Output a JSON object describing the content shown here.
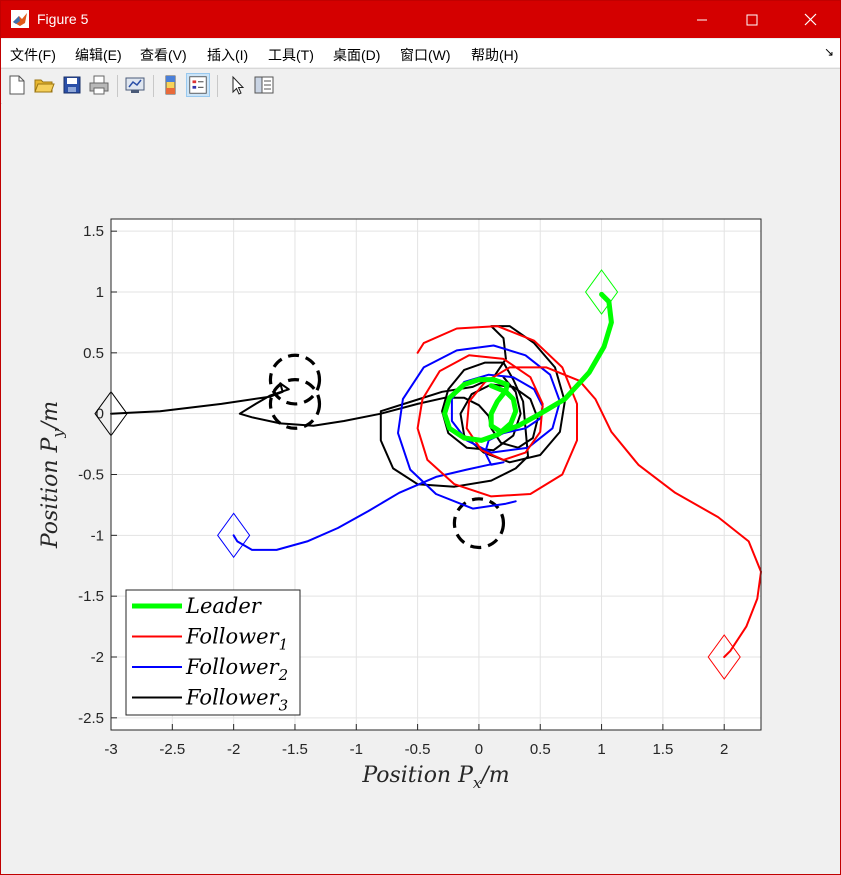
{
  "window": {
    "title": "Figure 5"
  },
  "menu": [
    {
      "label": "文件(F)"
    },
    {
      "label": "编辑(E)"
    },
    {
      "label": "查看(V)"
    },
    {
      "label": "插入(I)"
    },
    {
      "label": "工具(T)"
    },
    {
      "label": "桌面(D)"
    },
    {
      "label": "窗口(W)"
    },
    {
      "label": "帮助(H)"
    }
  ],
  "toolbar": [
    {
      "icon": "new-figure-icon"
    },
    {
      "icon": "open-file-icon"
    },
    {
      "icon": "save-icon"
    },
    {
      "icon": "print-icon"
    },
    {
      "icon": "link-plot-icon"
    },
    {
      "icon": "colorbar-icon"
    },
    {
      "icon": "legend-icon",
      "active": true
    },
    {
      "icon": "pointer-icon"
    },
    {
      "icon": "property-inspector-icon"
    }
  ],
  "chart_data": {
    "type": "line",
    "xlabel": "Position P_x/m",
    "ylabel": "Position P_y/m",
    "xlim": [
      -3,
      2.3
    ],
    "ylim": [
      -2.6,
      1.6
    ],
    "xticks": [
      -3,
      -2.5,
      -2,
      -1.5,
      -1,
      -0.5,
      0,
      0.5,
      1,
      1.5,
      2
    ],
    "yticks": [
      1.5,
      1,
      0.5,
      0,
      -0.5,
      -1,
      -1.5,
      -2,
      -2.5
    ],
    "xtick_labels": [
      "-3",
      "-2.5",
      "-2",
      "-1.5",
      "-1",
      "-0.5",
      "0",
      "0.5",
      "1",
      "1.5",
      "2"
    ],
    "ytick_labels": [
      "1.5",
      "1",
      "0.5",
      "0",
      "-0.5",
      "-1",
      "-1.5",
      "-2",
      "-2.5"
    ],
    "grid": true,
    "legend_position": "bottom-left",
    "series": [
      {
        "name": "Leader",
        "color": "#00ff00",
        "width": 5,
        "marker": "diamond",
        "start": [
          1,
          1
        ],
        "points": [
          [
            1,
            0.98
          ],
          [
            1.06,
            0.92
          ],
          [
            1.08,
            0.75
          ],
          [
            1.02,
            0.55
          ],
          [
            0.9,
            0.34
          ],
          [
            0.7,
            0.12
          ],
          [
            0.5,
            0
          ],
          [
            0.32,
            -0.1
          ],
          [
            0.18,
            -0.15
          ],
          [
            0.1,
            -0.1
          ],
          [
            0.1,
            0
          ],
          [
            0.15,
            0.1
          ],
          [
            0.22,
            0.19
          ],
          [
            0.23,
            0.24
          ],
          [
            0.12,
            0.28
          ],
          [
            0.0,
            0.28
          ],
          [
            -0.12,
            0.24
          ],
          [
            -0.24,
            0.13
          ],
          [
            -0.28,
            0
          ],
          [
            -0.24,
            -0.12
          ],
          [
            -0.12,
            -0.2
          ],
          [
            0.02,
            -0.22
          ],
          [
            0.16,
            -0.17
          ],
          [
            0.26,
            -0.08
          ],
          [
            0.3,
            0.02
          ],
          [
            0.28,
            0.12
          ],
          [
            0.22,
            0.18
          ],
          [
            0.1,
            0.23
          ]
        ]
      },
      {
        "name": "Follower_1",
        "color": "#ff0000",
        "width": 2,
        "marker": "diamond",
        "start": [
          2,
          -2
        ],
        "points": [
          [
            2,
            -2
          ],
          [
            2.05,
            -1.95
          ],
          [
            2.18,
            -1.75
          ],
          [
            2.27,
            -1.52
          ],
          [
            2.3,
            -1.3
          ],
          [
            2.2,
            -1.05
          ],
          [
            1.95,
            -0.85
          ],
          [
            1.6,
            -0.65
          ],
          [
            1.3,
            -0.42
          ],
          [
            1.08,
            -0.15
          ],
          [
            0.95,
            0.12
          ],
          [
            0.82,
            0.27
          ],
          [
            0.55,
            0.38
          ],
          [
            0.25,
            0.38
          ],
          [
            0.05,
            0.26
          ],
          [
            -0.08,
            0.1
          ],
          [
            -0.1,
            -0.12
          ],
          [
            0.02,
            -0.3
          ],
          [
            0.2,
            -0.38
          ],
          [
            0.38,
            -0.32
          ],
          [
            0.5,
            -0.15
          ],
          [
            0.52,
            0.08
          ],
          [
            0.42,
            0.3
          ],
          [
            0.2,
            0.45
          ],
          [
            -0.08,
            0.48
          ],
          [
            -0.32,
            0.35
          ],
          [
            -0.46,
            0.12
          ],
          [
            -0.5,
            -0.12
          ],
          [
            -0.42,
            -0.38
          ],
          [
            -0.2,
            -0.58
          ],
          [
            0.1,
            -0.68
          ],
          [
            0.42,
            -0.66
          ],
          [
            0.68,
            -0.5
          ],
          [
            0.8,
            -0.22
          ],
          [
            0.8,
            0.08
          ],
          [
            0.68,
            0.38
          ],
          [
            0.45,
            0.6
          ],
          [
            0.15,
            0.72
          ],
          [
            -0.18,
            0.7
          ],
          [
            -0.45,
            0.58
          ],
          [
            -0.5,
            0.5
          ]
        ]
      },
      {
        "name": "Follower_2",
        "color": "#0000ff",
        "width": 2,
        "marker": "diamond",
        "start": [
          -2,
          -1
        ],
        "points": [
          [
            -2,
            -1
          ],
          [
            -1.97,
            -1.05
          ],
          [
            -1.85,
            -1.12
          ],
          [
            -1.65,
            -1.12
          ],
          [
            -1.4,
            -1.05
          ],
          [
            -1.15,
            -0.94
          ],
          [
            -0.9,
            -0.8
          ],
          [
            -0.65,
            -0.65
          ],
          [
            -0.35,
            -0.52
          ],
          [
            -0.1,
            -0.46
          ],
          [
            0.08,
            -0.42
          ],
          [
            0.2,
            -0.4
          ],
          [
            0.1,
            -0.42
          ],
          [
            0.05,
            -0.32
          ],
          [
            0.08,
            -0.22
          ],
          [
            0.2,
            -0.16
          ],
          [
            0.38,
            -0.12
          ],
          [
            0.5,
            -0.04
          ],
          [
            0.52,
            0.06
          ],
          [
            0.45,
            0.2
          ],
          [
            0.28,
            0.3
          ],
          [
            0.08,
            0.32
          ],
          [
            -0.12,
            0.26
          ],
          [
            -0.22,
            0.12
          ],
          [
            -0.22,
            -0.06
          ],
          [
            -0.1,
            -0.22
          ],
          [
            0.1,
            -0.32
          ],
          [
            0.4,
            -0.28
          ],
          [
            0.6,
            -0.12
          ],
          [
            0.66,
            0.1
          ],
          [
            0.58,
            0.32
          ],
          [
            0.38,
            0.48
          ],
          [
            0.12,
            0.56
          ],
          [
            -0.18,
            0.52
          ],
          [
            -0.45,
            0.38
          ],
          [
            -0.62,
            0.12
          ],
          [
            -0.66,
            -0.16
          ],
          [
            -0.56,
            -0.46
          ],
          [
            -0.35,
            -0.66
          ],
          [
            -0.05,
            -0.78
          ],
          [
            0.22,
            -0.74
          ],
          [
            0.3,
            -0.72
          ]
        ]
      },
      {
        "name": "Follower_3",
        "color": "#000000",
        "width": 2,
        "marker": "diamond",
        "start": [
          -3,
          0
        ],
        "points": [
          [
            -3,
            0
          ],
          [
            -2.6,
            0.02
          ],
          [
            -2.1,
            0.08
          ],
          [
            -1.7,
            0.14
          ],
          [
            -1.6,
            0.18
          ],
          [
            -1.62,
            0.25
          ],
          [
            -1.55,
            0.2
          ],
          [
            -1.7,
            0.15
          ],
          [
            -1.82,
            0.08
          ],
          [
            -1.95,
            0
          ],
          [
            -1.85,
            -0.03
          ],
          [
            -1.62,
            -0.08
          ],
          [
            -1.35,
            -0.1
          ],
          [
            -1.1,
            -0.06
          ],
          [
            -0.8,
            0
          ],
          [
            -0.5,
            0.08
          ],
          [
            -0.28,
            0.13
          ],
          [
            -0.12,
            0.13
          ],
          [
            0,
            0.07
          ],
          [
            0.08,
            -0.02
          ],
          [
            0.1,
            -0.12
          ],
          [
            0.18,
            -0.24
          ],
          [
            0.32,
            -0.28
          ],
          [
            0.44,
            -0.2
          ],
          [
            0.48,
            -0.04
          ],
          [
            0.42,
            0.12
          ],
          [
            0.28,
            0.22
          ],
          [
            0.1,
            0.24
          ],
          [
            -0.06,
            0.16
          ],
          [
            -0.15,
            0
          ],
          [
            -0.12,
            -0.18
          ],
          [
            0.04,
            -0.32
          ],
          [
            0.25,
            -0.4
          ],
          [
            0.5,
            -0.34
          ],
          [
            0.66,
            -0.15
          ],
          [
            0.7,
            0.1
          ],
          [
            0.62,
            0.38
          ],
          [
            0.45,
            0.58
          ],
          [
            0.25,
            0.72
          ],
          [
            0.1,
            0.72
          ],
          [
            0.2,
            0.62
          ],
          [
            0.22,
            0.45
          ],
          [
            0.12,
            0.3
          ],
          [
            -0.05,
            0.22
          ],
          [
            -0.3,
            0.18
          ],
          [
            -0.55,
            0.1
          ],
          [
            -0.8,
            0.02
          ],
          [
            -0.8,
            -0.22
          ],
          [
            -0.7,
            -0.45
          ],
          [
            -0.5,
            -0.58
          ],
          [
            -0.2,
            -0.6
          ],
          [
            0.1,
            -0.55
          ],
          [
            0.3,
            -0.45
          ],
          [
            0.4,
            -0.35
          ],
          [
            0.36,
            0.1
          ],
          [
            0.28,
            0.28
          ],
          [
            0.2,
            0.42
          ],
          [
            0.05,
            0.42
          ],
          [
            -0.12,
            0.36
          ],
          [
            -0.25,
            0.2
          ],
          [
            -0.3,
            0.02
          ],
          [
            -0.25,
            -0.16
          ],
          [
            -0.1,
            -0.28
          ],
          [
            0.12,
            -0.3
          ],
          [
            0.28,
            -0.18
          ],
          [
            0.34,
            0
          ],
          [
            0.3,
            0.18
          ],
          [
            0.2,
            0.3
          ]
        ]
      }
    ],
    "obstacles": [
      {
        "center": [
          -1.5,
          0.28
        ],
        "radius": 0.2
      },
      {
        "center": [
          -1.5,
          0.08
        ],
        "radius": 0.2
      },
      {
        "center": [
          0,
          -0.9
        ],
        "radius": 0.2
      }
    ],
    "legend": [
      {
        "label": "Leader",
        "color": "#00ff00",
        "width": 5
      },
      {
        "label": "Follower_1",
        "color": "#ff0000",
        "width": 2
      },
      {
        "label": "Follower_2",
        "color": "#0000ff",
        "width": 2
      },
      {
        "label": "Follower_3",
        "color": "#000000",
        "width": 2
      }
    ]
  }
}
